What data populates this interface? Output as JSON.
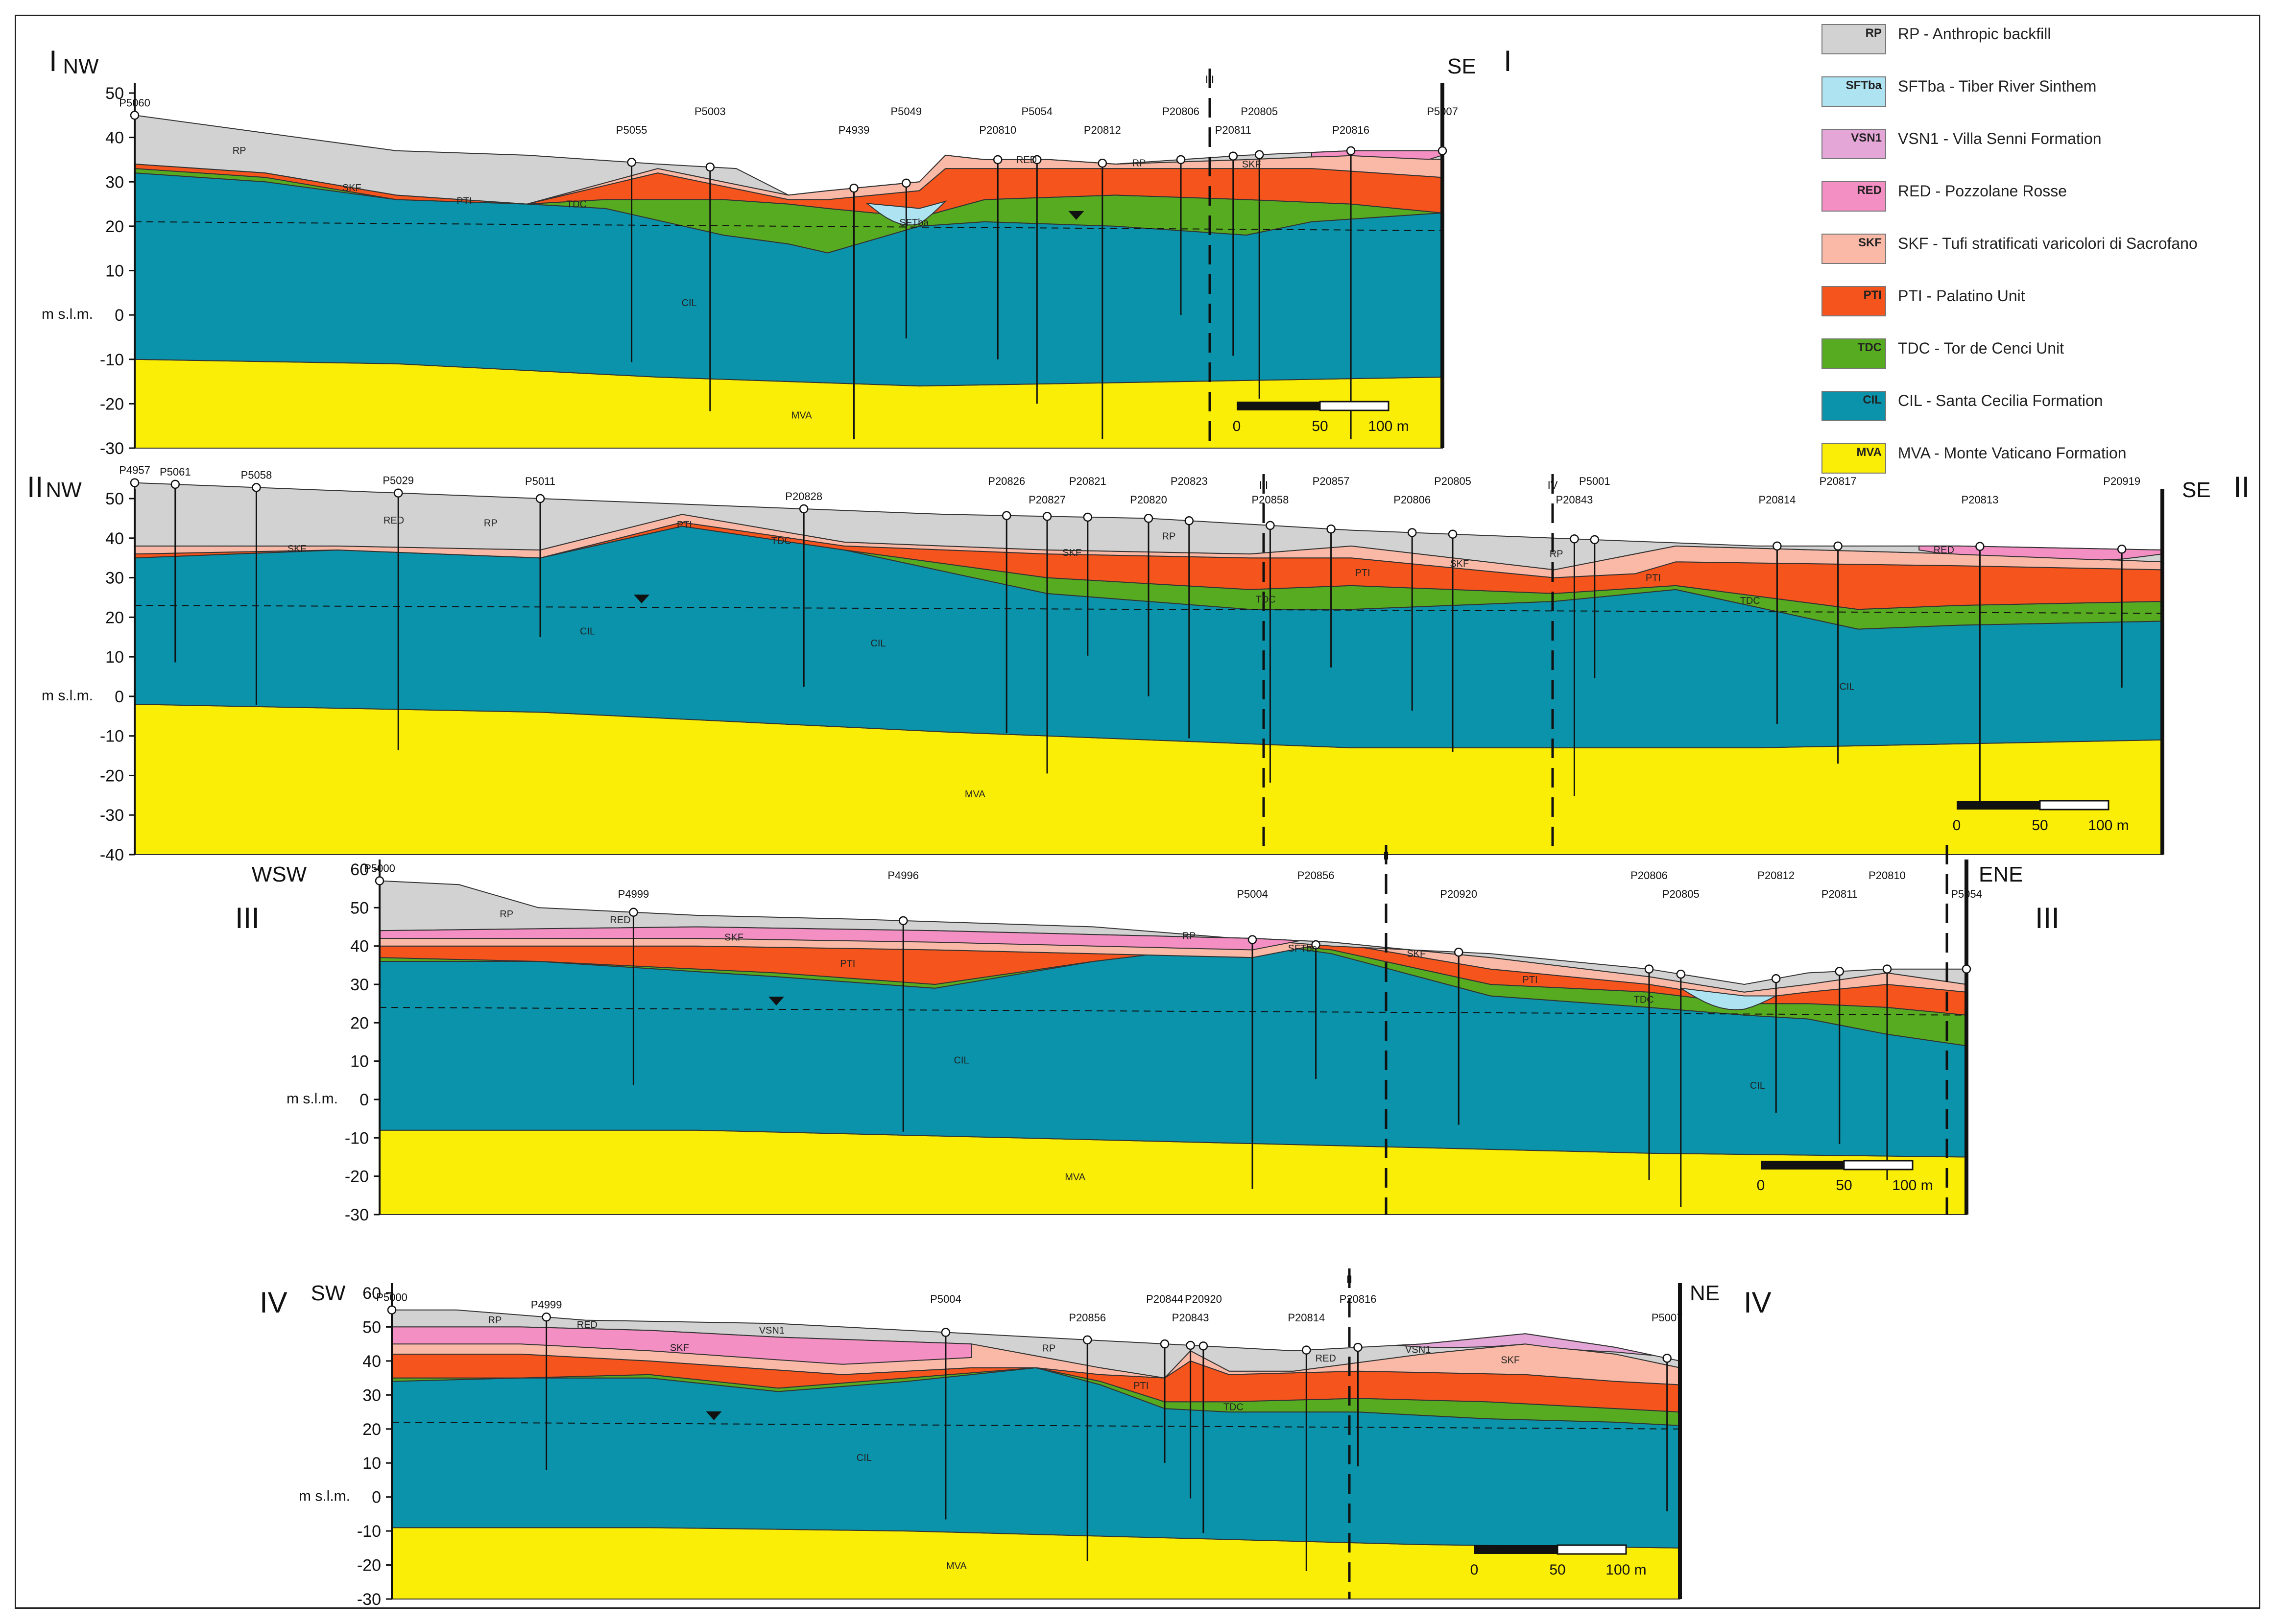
{
  "colors": {
    "RP": "#d2d2d2",
    "SFTba": "#aee3f2",
    "VSN1": "#e3a6d6",
    "RED": "#f48fc3",
    "SKF": "#f9b9a6",
    "PTI": "#f5541c",
    "TDC": "#57ab21",
    "CIL": "#0a93ab",
    "MVA": "#fbee06"
  },
  "legend": [
    {
      "code": "RP",
      "label": "RP - Anthropic backfill"
    },
    {
      "code": "SFTba",
      "label": "SFTba - Tiber River Sinthem"
    },
    {
      "code": "VSN1",
      "label": "VSN1 - Villa Senni Formation"
    },
    {
      "code": "RED",
      "label": "RED - Pozzolane Rosse"
    },
    {
      "code": "SKF",
      "label": "SKF - Tufi stratificati varicolori di Sacrofano"
    },
    {
      "code": "PTI",
      "label": "PTI - Palatino Unit"
    },
    {
      "code": "TDC",
      "label": "TDC - Tor de Cenci Unit"
    },
    {
      "code": "CIL",
      "label": "CIL - Santa Cecilia Formation"
    },
    {
      "code": "MVA",
      "label": "MVA - Monte Vaticano Formation"
    }
  ],
  "axis_title": "m s.l.m.",
  "scale_bar": {
    "labels": [
      "0",
      "50",
      "100 m"
    ]
  },
  "sections": [
    {
      "id": "I",
      "left_end": "NW",
      "right_end": "SE",
      "ticks": [
        "50",
        "40",
        "30",
        "20",
        "10",
        "0",
        "-10",
        "-20",
        "-30"
      ],
      "crossing_labels": [
        "III"
      ],
      "wells": [
        "P5060",
        "P5055",
        "P5003",
        "P4939",
        "P5049",
        "P20810",
        "P5054",
        "P20812",
        "P20806",
        "P20811",
        "P20805",
        "P20816",
        "P5007"
      ],
      "unit_tags": [
        "RP",
        "SKF",
        "PTI",
        "TDC",
        "CIL",
        "MVA",
        "SFTba",
        "RED",
        "RP",
        "SKF"
      ]
    },
    {
      "id": "II",
      "left_end": "NW",
      "right_end": "SE",
      "ticks": [
        "50",
        "40",
        "30",
        "20",
        "10",
        "0",
        "-10",
        "-20",
        "-30",
        "-40"
      ],
      "crossing_labels": [
        "III",
        "IV"
      ],
      "wells": [
        "P4957",
        "P5061",
        "P5058",
        "P5029",
        "P5011",
        "P20828",
        "P20826",
        "P20827",
        "P20821",
        "P20820",
        "P20823",
        "P20858",
        "P20857",
        "P20806",
        "P20805",
        "P20843",
        "P5001",
        "P20814",
        "P20817",
        "P20813",
        "P20919"
      ],
      "unit_tags": [
        "SKF",
        "RED",
        "RP",
        "CIL",
        "PTI",
        "TDC",
        "CIL",
        "MVA",
        "SKF",
        "RP",
        "TDC",
        "PTI",
        "SKF",
        "RP",
        "PTI",
        "TDC",
        "CIL",
        "RED"
      ]
    },
    {
      "id": "III",
      "left_end": "WSW",
      "right_end": "ENE",
      "ticks": [
        "60",
        "50",
        "40",
        "30",
        "20",
        "10",
        "0",
        "-10",
        "-20",
        "-30"
      ],
      "crossing_labels": [
        "II",
        "I"
      ],
      "wells": [
        "P5000",
        "P4999",
        "P4996",
        "P5004",
        "P20856",
        "P20920",
        "P20806",
        "P20805",
        "P20812",
        "P20811",
        "P20810",
        "P5054"
      ],
      "unit_tags": [
        "RP",
        "RED",
        "SKF",
        "PTI",
        "CIL",
        "MVA",
        "RP",
        "SFTba",
        "SKF",
        "PTI",
        "TDC",
        "CIL"
      ]
    },
    {
      "id": "IV",
      "left_end": "SW",
      "right_end": "NE",
      "ticks": [
        "60",
        "50",
        "40",
        "30",
        "20",
        "10",
        "0",
        "-10",
        "-20",
        "-30"
      ],
      "crossing_labels": [
        "II"
      ],
      "wells": [
        "P5000",
        "P4999",
        "P5004",
        "P20856",
        "P20844",
        "P20843",
        "P20920",
        "P20814",
        "P20816",
        "P5007"
      ],
      "unit_tags": [
        "RP",
        "RED",
        "SKF",
        "VSN1",
        "CIL",
        "MVA",
        "RP",
        "PTI",
        "TDC",
        "RED",
        "VSN1",
        "SKF"
      ]
    }
  ]
}
